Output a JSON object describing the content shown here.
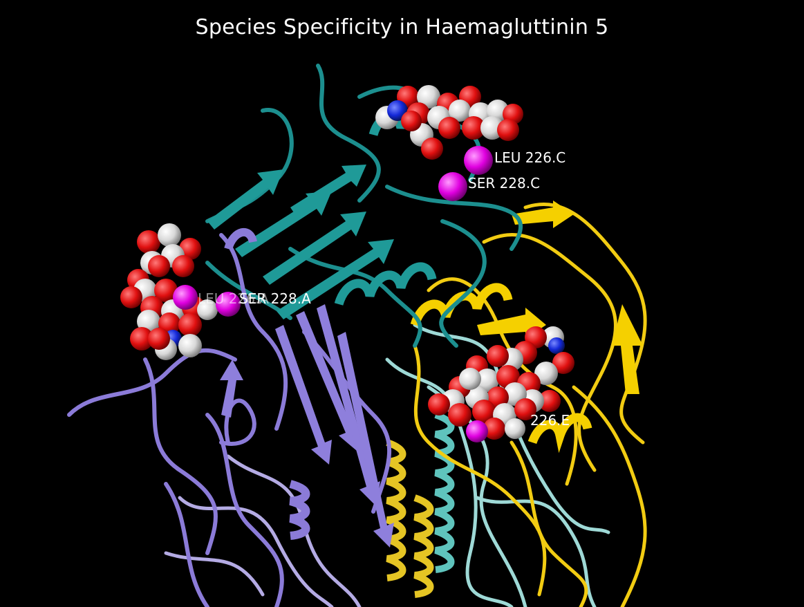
{
  "title": "Species Specificity in Haemagluttinin 5",
  "labels": {
    "leu_c": "LEU 226.C",
    "ser_c": "SER 228.C",
    "leu_a": "LEU 226.A",
    "ser_a": "SER 228.A",
    "leu_e": "226.E"
  },
  "colors": {
    "background": "#000000",
    "chain_teal": "#1c8f8f",
    "chain_teal_light": "#8fd6d2",
    "chain_purple": "#8b7bd8",
    "chain_purple_light": "#b7aee6",
    "chain_yellow": "#f2cc12",
    "oxygen": "#e01010",
    "carbon": "#dcdcdc",
    "nitrogen": "#1428d8",
    "marker": "#e000e0",
    "label_text": "#ffffff"
  }
}
